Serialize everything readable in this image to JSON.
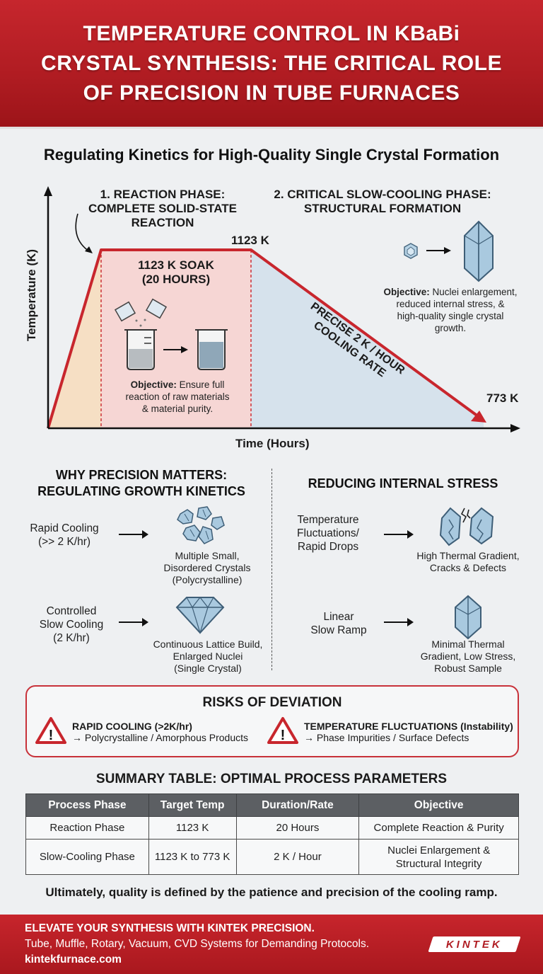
{
  "header": {
    "title_lines": [
      "TEMPERATURE CONTROL IN KBaBi",
      "CRYSTAL SYNTHESIS: THE CRITICAL ROLE",
      "OF PRECISION IN TUBE FURNACES"
    ]
  },
  "subtitle": "Regulating Kinetics for High-Quality Single Crystal Formation",
  "graph": {
    "y_axis_label": "Temperature (K)",
    "x_axis_label": "Time (Hours)",
    "phase1": {
      "title_lines": [
        "1. REACTION PHASE:",
        "COMPLETE SOLID-STATE",
        "REACTION"
      ],
      "soak_lines": [
        "1123 K SOAK",
        "(20 HOURS)"
      ],
      "objective_label": "Objective:",
      "objective_lines": [
        " Ensure full",
        "reaction of raw materials",
        "& material purity."
      ]
    },
    "phase2": {
      "title_lines": [
        "2. CRITICAL SLOW-COOLING PHASE:",
        "STRUCTURAL FORMATION"
      ],
      "objective_label": "Objective:",
      "objective_lines": [
        " Nuclei enlargement,",
        "reduced internal stress, &",
        "high-quality single crystal",
        "growth."
      ]
    },
    "peak_label": "1123 K",
    "end_label": "773 K",
    "rate_lines": [
      "PRECISE 2 K / HOUR",
      "COOLING RATE"
    ],
    "colors": {
      "ramp": "#f6dfc4",
      "soak": "#f6d6d4",
      "cool": "#d6e2ec",
      "line": "#c8262d"
    }
  },
  "precision": {
    "title_lines": [
      "WHY PRECISION MATTERS:",
      "REGULATING GROWTH KINETICS"
    ],
    "rows": [
      {
        "input": [
          "Rapid Cooling",
          "(>> 2 K/hr)"
        ],
        "result": [
          "Multiple Small,",
          "Disordered Crystals",
          "(Polycrystalline)"
        ]
      },
      {
        "input": [
          "Controlled",
          "Slow Cooling",
          "(2 K/hr)"
        ],
        "result": [
          "Continuous Lattice Build,",
          "Enlarged Nuclei",
          "(Single Crystal)"
        ]
      }
    ]
  },
  "stress": {
    "title": "REDUCING INTERNAL STRESS",
    "rows": [
      {
        "input": [
          "Temperature",
          "Fluctuations/",
          "Rapid Drops"
        ],
        "result": [
          "High Thermal Gradient,",
          "Cracks & Defects"
        ]
      },
      {
        "input": [
          "Linear",
          "Slow Ramp"
        ],
        "result": [
          "Minimal Thermal",
          "Gradient, Low Stress,",
          "Robust Sample"
        ]
      }
    ]
  },
  "risks": {
    "title": "RISKS OF DEVIATION",
    "items": [
      {
        "title": "RAPID COOLING (>2K/hr)",
        "text": "→ Polycrystalline / Amorphous Products"
      },
      {
        "title": "TEMPERATURE FLUCTUATIONS (Instability)",
        "text": "→ Phase Impurities / Surface Defects"
      }
    ]
  },
  "summary": {
    "title": "SUMMARY TABLE: OPTIMAL PROCESS PARAMETERS",
    "headers": [
      "Process Phase",
      "Target Temp",
      "Duration/Rate",
      "Objective"
    ],
    "rows": [
      [
        "Reaction Phase",
        "1123 K",
        "20 Hours",
        "Complete Reaction & Purity"
      ],
      [
        "Slow-Cooling Phase",
        "1123 K to 773 K",
        "2 K / Hour",
        "Nuclei Enlargement &",
        "Structural Integrity"
      ]
    ]
  },
  "conclusion": "Ultimately, quality is defined by the patience and precision of the cooling ramp.",
  "footer": {
    "line1": "ELEVATE YOUR SYNTHESIS WITH KINTEK PRECISION.",
    "line2": "Tube, Muffle, Rotary, Vacuum, CVD Systems for Demanding Protocols.",
    "line3": "kintekfurnace.com",
    "logo": "KINTEK"
  }
}
